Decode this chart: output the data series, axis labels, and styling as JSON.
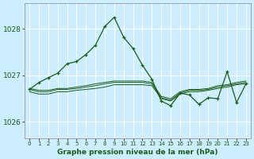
{
  "bg_color": "#cceeff",
  "grid_color": "#aaddcc",
  "line_color": "#1a5c1a",
  "title": "Graphe pression niveau de la mer (hPa)",
  "xlim": [
    -0.5,
    23.5
  ],
  "ylim": [
    1025.65,
    1028.55
  ],
  "yticks": [
    1026,
    1027,
    1028
  ],
  "xticks": [
    0,
    1,
    2,
    3,
    4,
    5,
    6,
    7,
    8,
    9,
    10,
    11,
    12,
    13,
    14,
    15,
    16,
    17,
    18,
    19,
    20,
    21,
    22,
    23
  ],
  "flat_series": [
    {
      "x": [
        0,
        1,
        2,
        3,
        4,
        5,
        6,
        7,
        8,
        9,
        10,
        11,
        12,
        13,
        14,
        15,
        16,
        17,
        18,
        19,
        20,
        21,
        22,
        23
      ],
      "y": [
        1026.65,
        1026.6,
        1026.6,
        1026.65,
        1026.65,
        1026.68,
        1026.7,
        1026.72,
        1026.75,
        1026.8,
        1026.8,
        1026.8,
        1026.8,
        1026.78,
        1026.5,
        1026.45,
        1026.6,
        1026.65,
        1026.65,
        1026.68,
        1026.72,
        1026.75,
        1026.8,
        1026.82
      ]
    },
    {
      "x": [
        0,
        1,
        2,
        3,
        4,
        5,
        6,
        7,
        8,
        9,
        10,
        11,
        12,
        13,
        14,
        15,
        16,
        17,
        18,
        19,
        20,
        21,
        22,
        23
      ],
      "y": [
        1026.7,
        1026.65,
        1026.65,
        1026.7,
        1026.7,
        1026.72,
        1026.75,
        1026.78,
        1026.82,
        1026.85,
        1026.85,
        1026.85,
        1026.85,
        1026.82,
        1026.52,
        1026.47,
        1026.62,
        1026.68,
        1026.68,
        1026.7,
        1026.75,
        1026.78,
        1026.82,
        1026.85
      ]
    },
    {
      "x": [
        0,
        1,
        2,
        3,
        4,
        5,
        6,
        7,
        8,
        9,
        10,
        11,
        12,
        13,
        14,
        15,
        16,
        17,
        18,
        19,
        20,
        21,
        22,
        23
      ],
      "y": [
        1026.72,
        1026.68,
        1026.68,
        1026.72,
        1026.72,
        1026.75,
        1026.78,
        1026.82,
        1026.85,
        1026.88,
        1026.88,
        1026.88,
        1026.88,
        1026.85,
        1026.55,
        1026.5,
        1026.65,
        1026.7,
        1026.7,
        1026.72,
        1026.78,
        1026.8,
        1026.85,
        1026.88
      ]
    }
  ],
  "main_series": {
    "x": [
      0,
      1,
      2,
      3,
      4,
      5,
      6,
      7,
      8,
      9,
      10,
      11,
      12,
      13,
      14,
      15,
      16,
      17,
      18,
      19,
      20,
      21,
      22,
      23
    ],
    "y": [
      1026.7,
      1026.85,
      1026.95,
      1027.05,
      1027.25,
      1027.3,
      1027.45,
      1027.65,
      1028.05,
      1028.25,
      1027.82,
      1027.58,
      1027.22,
      1026.92,
      1026.45,
      1026.35,
      1026.62,
      1026.58,
      1026.38,
      1026.52,
      1026.5,
      1027.08,
      1026.42,
      1026.82
    ]
  }
}
